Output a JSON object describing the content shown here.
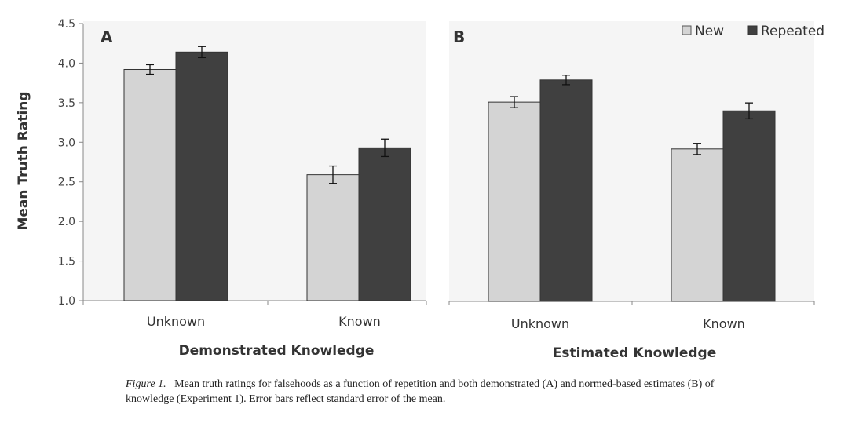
{
  "chart_data": [
    {
      "type": "bar",
      "panel_label": "A",
      "categories": [
        "Unknown",
        "Known"
      ],
      "xlabel": "Demonstrated Knowledge",
      "ylabel": "Mean Truth Rating",
      "ylim": [
        1.0,
        4.5
      ],
      "yticks": [
        "1.0",
        "1.5",
        "2.0",
        "2.5",
        "3.0",
        "3.5",
        "4.0",
        "4.5"
      ],
      "series": [
        {
          "name": "New",
          "values": [
            3.92,
            2.59
          ],
          "errors": [
            0.06,
            0.11
          ],
          "color": "#d4d4d4"
        },
        {
          "name": "Repeated",
          "values": [
            4.14,
            2.93
          ],
          "errors": [
            0.07,
            0.11
          ],
          "color": "#404040"
        }
      ]
    },
    {
      "type": "bar",
      "panel_label": "B",
      "categories": [
        "Unknown",
        "Known"
      ],
      "xlabel": "Estimated Knowledge",
      "ylabel": "",
      "ylim": [
        1.0,
        4.5
      ],
      "series": [
        {
          "name": "New",
          "values": [
            3.51,
            2.92
          ],
          "errors": [
            0.07,
            0.07
          ],
          "color": "#d4d4d4"
        },
        {
          "name": "Repeated",
          "values": [
            3.79,
            3.4
          ],
          "errors": [
            0.06,
            0.1
          ],
          "color": "#404040"
        }
      ],
      "legend": {
        "position": "top-right",
        "entries": [
          "New",
          "Repeated"
        ]
      }
    }
  ],
  "caption": {
    "label": "Figure 1.",
    "text": "Mean truth ratings for falsehoods as a function of repetition and both demonstrated (A) and normed-based estimates (B) of knowledge (Experiment 1). Error bars reflect standard error of the mean."
  }
}
